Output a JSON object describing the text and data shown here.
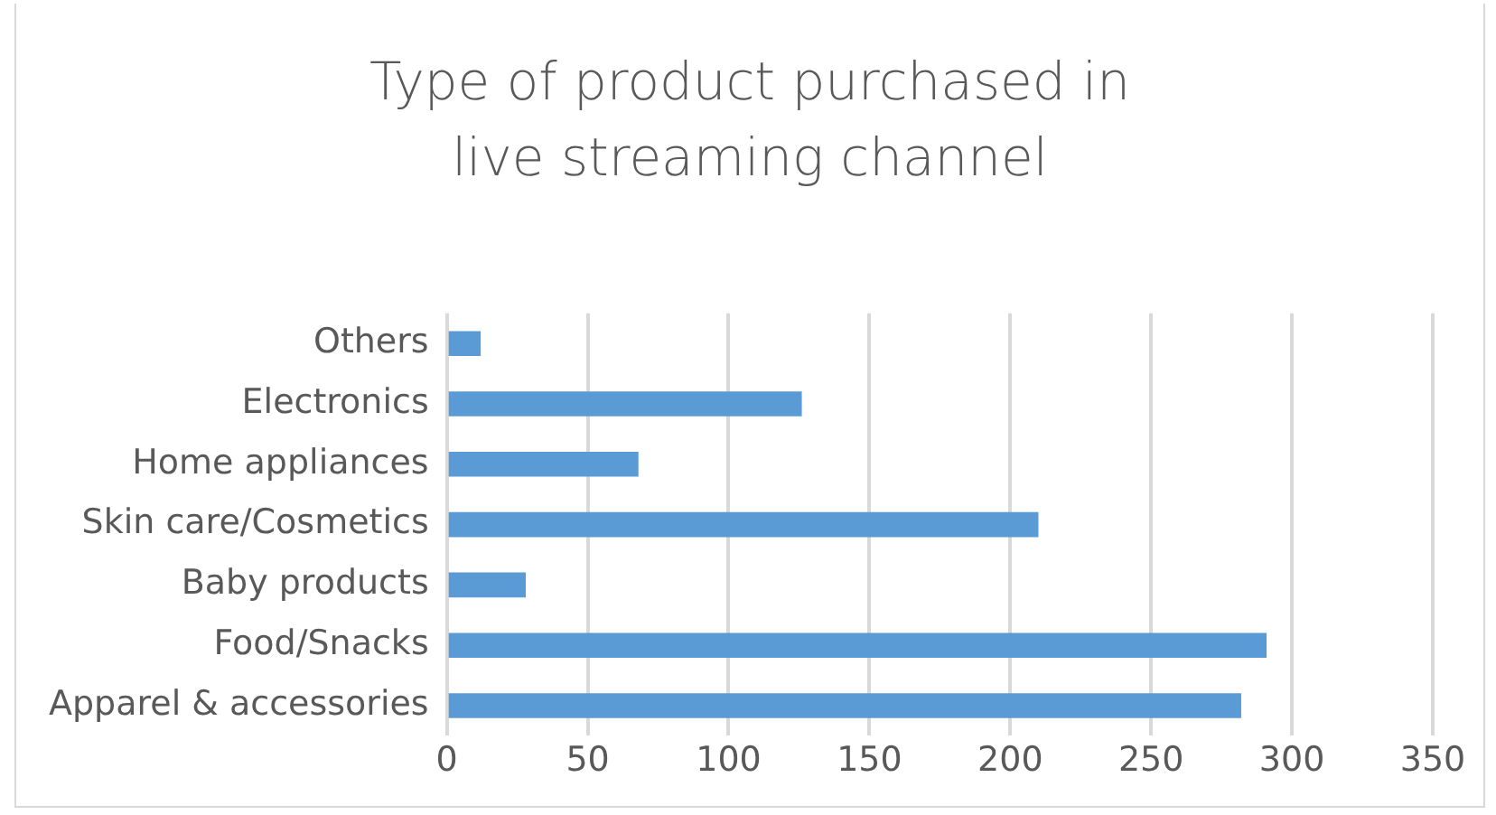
{
  "chart_data": {
    "type": "bar",
    "orientation": "horizontal",
    "title": "Type of product purchased in live streaming channel",
    "categories": [
      "Others",
      "Electronics",
      "Home appliances",
      "Skin care/Cosmetics",
      "Baby products",
      "Food/Snacks",
      "Apparel & accessories"
    ],
    "values": [
      12,
      126,
      68,
      210,
      28,
      291,
      282
    ],
    "color": "#5b9bd5",
    "xlim": [
      0,
      350
    ],
    "xticks": [
      0,
      50,
      100,
      150,
      200,
      250,
      300,
      350
    ],
    "grid": "x",
    "legend": false
  }
}
